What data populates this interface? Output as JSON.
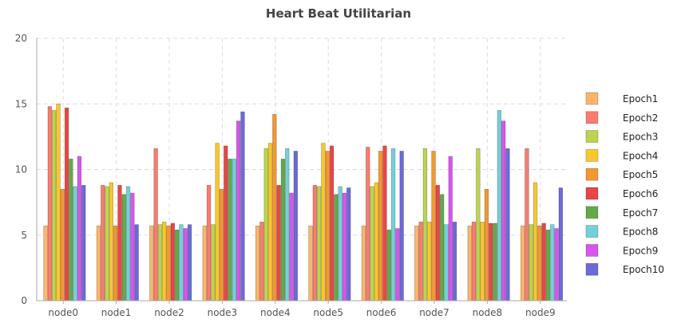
{
  "chart_data": {
    "type": "bar",
    "title": "Heart Beat Utilitarian",
    "xlabel": "",
    "ylabel": "",
    "ylim": [
      0,
      20
    ],
    "yticks": [
      0,
      5,
      10,
      15,
      20
    ],
    "grid": true,
    "legend_position": "right",
    "categories": [
      "node0",
      "node1",
      "node2",
      "node3",
      "node4",
      "node5",
      "node6",
      "node7",
      "node8",
      "node9"
    ],
    "series": [
      {
        "name": "Epoch1",
        "color": "#fdb56a",
        "values": [
          5.7,
          5.7,
          5.7,
          5.7,
          5.7,
          5.7,
          5.7,
          5.7,
          5.7,
          5.7
        ]
      },
      {
        "name": "Epoch2",
        "color": "#fb7b6e",
        "values": [
          14.8,
          8.8,
          11.6,
          8.8,
          6.0,
          8.8,
          11.7,
          6.0,
          6.0,
          11.6
        ]
      },
      {
        "name": "Epoch3",
        "color": "#bdd44e",
        "values": [
          14.5,
          8.7,
          5.8,
          5.8,
          11.6,
          8.7,
          8.7,
          11.6,
          11.6,
          5.8
        ]
      },
      {
        "name": "Epoch4",
        "color": "#fac72a",
        "values": [
          15.0,
          9.0,
          6.0,
          12.0,
          12.0,
          12.0,
          9.0,
          6.0,
          6.0,
          9.0
        ]
      },
      {
        "name": "Epoch5",
        "color": "#f39730",
        "values": [
          8.5,
          5.7,
          5.7,
          8.5,
          14.2,
          11.4,
          11.4,
          11.4,
          8.5,
          5.7
        ]
      },
      {
        "name": "Epoch6",
        "color": "#e94646",
        "values": [
          14.7,
          8.8,
          5.9,
          11.8,
          8.8,
          11.8,
          11.8,
          8.8,
          5.9,
          5.9
        ]
      },
      {
        "name": "Epoch7",
        "color": "#62aa49",
        "values": [
          10.8,
          8.1,
          5.4,
          10.8,
          10.8,
          8.1,
          5.4,
          8.1,
          5.9,
          5.4
        ]
      },
      {
        "name": "Epoch8",
        "color": "#74d0d8",
        "values": [
          8.7,
          8.7,
          5.8,
          10.8,
          11.6,
          8.7,
          11.6,
          5.8,
          14.5,
          5.8
        ]
      },
      {
        "name": "Epoch9",
        "color": "#d855ee",
        "values": [
          11.0,
          8.2,
          5.5,
          13.7,
          8.2,
          8.2,
          5.5,
          11.0,
          13.7,
          5.5
        ]
      },
      {
        "name": "Epoch10",
        "color": "#6b6bd8",
        "values": [
          8.8,
          5.8,
          5.8,
          14.4,
          11.4,
          8.6,
          11.4,
          6.0,
          11.6,
          8.6
        ]
      }
    ]
  }
}
